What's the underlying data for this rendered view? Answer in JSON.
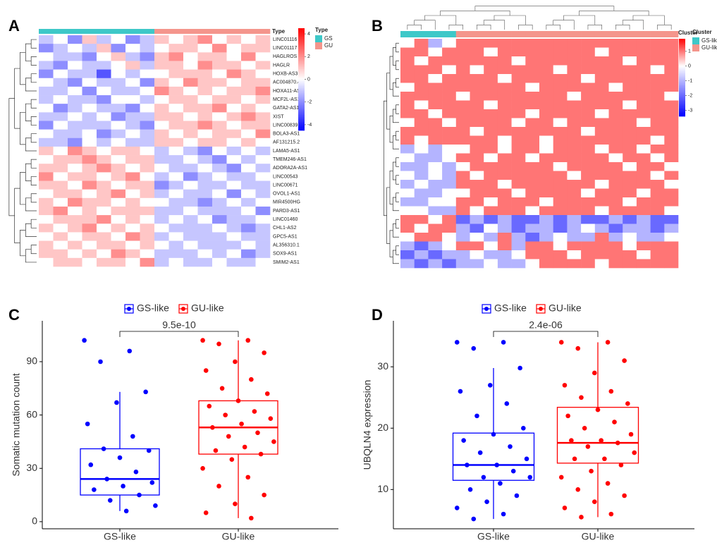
{
  "chart_data": [
    {
      "type": "heatmap",
      "label": "A",
      "rows": [
        "LINC01116",
        "LINC01117",
        "HAGLROS",
        "HAGLR",
        "HOXB-AS3",
        "AC004870.4",
        "HOXA11-AS",
        "MCF2L-AS1",
        "GATA2-AS1",
        "XIST",
        "LINC00839",
        "BOLA3-AS1",
        "AF131215.2",
        "LAMA5-AS1",
        "TMEM246-AS1",
        "ADORA2A-AS1",
        "LINC00543",
        "LINC00671",
        "OVOL1-AS1",
        "MIR4500HG",
        "PARD3-AS1",
        "LINC01460",
        "CHL1-AS2",
        "GPC5-AS1",
        "AL356310.1",
        "SOX9-AS1",
        "SMIM2-AS1"
      ],
      "column_groups": [
        "GS",
        "GS",
        "GS",
        "GS",
        "GS",
        "GS",
        "GS",
        "GS",
        "GU",
        "GU",
        "GU",
        "GU",
        "GU",
        "GU",
        "GU",
        "GU"
      ],
      "values": [
        [
          -1,
          0,
          -2,
          1,
          -1,
          0,
          -2,
          -1,
          1,
          0,
          1,
          2,
          0,
          1,
          0,
          1
        ],
        [
          -2,
          -1,
          0,
          -1,
          1,
          -2,
          0,
          -1,
          0,
          1,
          1,
          0,
          2,
          0,
          1,
          1
        ],
        [
          0,
          -1,
          -1,
          -2,
          0,
          1,
          -1,
          -2,
          1,
          2,
          0,
          1,
          1,
          0,
          2,
          0
        ],
        [
          -1,
          -2,
          0,
          -1,
          -1,
          0,
          1,
          -1,
          1,
          1,
          0,
          2,
          1,
          1,
          0,
          1
        ],
        [
          -2,
          0,
          -1,
          -1,
          -3,
          0,
          -1,
          0,
          0,
          1,
          1,
          1,
          0,
          2,
          1,
          0
        ],
        [
          0,
          -1,
          -2,
          0,
          -1,
          -1,
          0,
          -2,
          1,
          0,
          2,
          1,
          1,
          0,
          1,
          1
        ],
        [
          -1,
          -1,
          0,
          -2,
          0,
          -1,
          -1,
          0,
          2,
          1,
          0,
          1,
          0,
          1,
          1,
          2
        ],
        [
          -1,
          0,
          -1,
          -1,
          -2,
          0,
          0,
          -1,
          0,
          1,
          1,
          0,
          1,
          1,
          0,
          1
        ],
        [
          0,
          -2,
          -1,
          0,
          -1,
          -1,
          -2,
          0,
          1,
          0,
          1,
          1,
          2,
          0,
          1,
          0
        ],
        [
          -1,
          -1,
          0,
          -1,
          0,
          -2,
          -1,
          -1,
          1,
          1,
          0,
          1,
          0,
          1,
          2,
          1
        ],
        [
          -2,
          0,
          -1,
          -1,
          -1,
          0,
          -1,
          -2,
          0,
          1,
          1,
          2,
          1,
          0,
          1,
          1
        ],
        [
          0,
          -1,
          -1,
          0,
          -2,
          -1,
          0,
          -1,
          1,
          0,
          1,
          0,
          1,
          1,
          0,
          2
        ],
        [
          -1,
          -1,
          -2,
          0,
          -1,
          0,
          -1,
          -1,
          1,
          1,
          0,
          1,
          1,
          0,
          1,
          0
        ],
        [
          1,
          0,
          2,
          1,
          0,
          1,
          1,
          0,
          -1,
          0,
          -1,
          -2,
          0,
          -1,
          0,
          -1
        ],
        [
          0,
          1,
          1,
          2,
          1,
          0,
          1,
          1,
          -1,
          -1,
          0,
          -1,
          -2,
          0,
          -1,
          0
        ],
        [
          1,
          1,
          0,
          1,
          2,
          1,
          0,
          1,
          0,
          -1,
          -1,
          0,
          -1,
          -2,
          0,
          -1
        ],
        [
          2,
          0,
          1,
          1,
          0,
          1,
          2,
          0,
          -1,
          0,
          -2,
          -1,
          0,
          -1,
          -1,
          0
        ],
        [
          1,
          1,
          0,
          2,
          1,
          0,
          1,
          1,
          -2,
          -1,
          0,
          -1,
          -1,
          0,
          -1,
          -1
        ],
        [
          0,
          1,
          1,
          0,
          1,
          2,
          0,
          1,
          -1,
          0,
          -1,
          -1,
          0,
          -2,
          0,
          -1
        ],
        [
          1,
          0,
          2,
          1,
          1,
          0,
          1,
          0,
          0,
          -1,
          -1,
          -2,
          -1,
          0,
          -1,
          0
        ],
        [
          1,
          2,
          0,
          1,
          0,
          1,
          1,
          1,
          -1,
          -1,
          0,
          -1,
          -1,
          -1,
          0,
          -2
        ],
        [
          0,
          1,
          1,
          1,
          2,
          0,
          1,
          0,
          -1,
          0,
          -1,
          0,
          -2,
          -1,
          -1,
          0
        ],
        [
          1,
          0,
          1,
          2,
          0,
          1,
          0,
          1,
          0,
          -1,
          -1,
          -1,
          0,
          -1,
          -2,
          -1
        ],
        [
          0,
          1,
          0,
          1,
          1,
          0,
          2,
          1,
          -1,
          0,
          -1,
          -1,
          -1,
          0,
          -1,
          -1
        ],
        [
          1,
          0,
          1,
          0,
          1,
          1,
          0,
          1,
          0,
          -1,
          0,
          -1,
          -1,
          -1,
          0,
          -1
        ],
        [
          1,
          1,
          0,
          1,
          0,
          2,
          1,
          0,
          -1,
          -1,
          -1,
          0,
          -1,
          0,
          -2,
          -1
        ],
        [
          0,
          1,
          1,
          0,
          1,
          1,
          0,
          2,
          -1,
          0,
          -1,
          -1,
          0,
          -1,
          -1,
          0
        ]
      ],
      "clim": [
        -4.5,
        4.5
      ],
      "cticks": [
        4,
        2,
        0,
        -2,
        -4
      ],
      "colors": {
        "low": "#0000ff",
        "mid": "#ffffff",
        "high": "#ff0000"
      },
      "annotation": {
        "title": "Type",
        "labels": [
          "GS",
          "GU"
        ],
        "colors": [
          "#3ec8c8",
          "#f4958c"
        ]
      }
    },
    {
      "type": "heatmap",
      "label": "B",
      "column_groups": [
        "GS-like",
        "GS-like",
        "GS-like",
        "GS-like",
        "GU-like",
        "GU-like",
        "GU-like",
        "GU-like",
        "GU-like",
        "GU-like",
        "GU-like",
        "GU-like",
        "GU-like",
        "GU-like",
        "GU-like",
        "GU-like",
        "GU-like",
        "GU-like",
        "GU-like",
        "GU-like"
      ],
      "values": [
        [
          0,
          1,
          -1,
          0,
          1,
          1,
          1,
          1,
          1,
          1,
          1,
          1,
          1,
          1,
          1,
          1,
          1,
          1,
          1,
          1
        ],
        [
          1,
          1,
          0,
          1,
          1,
          1,
          0,
          1,
          1,
          1,
          1,
          1,
          1,
          1,
          0,
          1,
          1,
          1,
          1,
          1
        ],
        [
          1,
          0,
          1,
          1,
          1,
          1,
          1,
          1,
          0,
          1,
          1,
          1,
          1,
          1,
          1,
          1,
          0,
          1,
          1,
          1
        ],
        [
          1,
          1,
          1,
          0,
          1,
          0,
          1,
          1,
          1,
          1,
          1,
          0,
          1,
          1,
          1,
          1,
          1,
          1,
          0,
          1
        ],
        [
          1,
          1,
          0,
          1,
          1,
          1,
          1,
          0,
          1,
          1,
          1,
          1,
          1,
          0,
          1,
          1,
          1,
          1,
          1,
          1
        ],
        [
          0,
          1,
          1,
          1,
          1,
          1,
          1,
          1,
          1,
          0,
          1,
          1,
          1,
          1,
          1,
          0,
          1,
          1,
          1,
          1
        ],
        [
          1,
          1,
          1,
          1,
          0,
          1,
          1,
          1,
          1,
          1,
          1,
          1,
          0,
          1,
          1,
          1,
          1,
          1,
          1,
          0
        ],
        [
          1,
          0,
          1,
          1,
          1,
          1,
          0,
          1,
          1,
          1,
          1,
          1,
          1,
          1,
          1,
          1,
          0,
          1,
          1,
          1
        ],
        [
          1,
          1,
          0,
          1,
          1,
          1,
          1,
          1,
          1,
          0,
          1,
          1,
          1,
          1,
          0,
          1,
          1,
          1,
          1,
          1
        ],
        [
          0,
          1,
          1,
          0,
          1,
          1,
          1,
          1,
          0,
          1,
          1,
          0,
          1,
          1,
          1,
          1,
          1,
          0,
          1,
          1
        ],
        [
          1,
          1,
          1,
          1,
          1,
          0,
          1,
          1,
          1,
          1,
          1,
          1,
          1,
          0,
          1,
          1,
          1,
          1,
          1,
          1
        ],
        [
          1,
          0,
          1,
          1,
          1,
          1,
          1,
          0,
          1,
          1,
          0,
          1,
          1,
          1,
          1,
          1,
          1,
          1,
          0,
          1
        ],
        [
          -1,
          0,
          -1,
          0,
          0,
          1,
          1,
          0,
          1,
          1,
          0,
          1,
          1,
          1,
          0,
          1,
          1,
          0,
          1,
          1
        ],
        [
          0,
          -1,
          -1,
          0,
          1,
          1,
          0,
          1,
          1,
          0,
          1,
          1,
          1,
          1,
          1,
          0,
          1,
          1,
          0,
          1
        ],
        [
          -1,
          -1,
          0,
          -1,
          0,
          1,
          1,
          1,
          1,
          1,
          1,
          0,
          1,
          1,
          1,
          1,
          0,
          1,
          1,
          0
        ],
        [
          0,
          -1,
          0,
          -1,
          1,
          0,
          1,
          1,
          1,
          1,
          1,
          1,
          0,
          1,
          1,
          1,
          1,
          1,
          0,
          1
        ],
        [
          -1,
          0,
          -1,
          -1,
          1,
          1,
          1,
          0,
          1,
          1,
          1,
          1,
          1,
          1,
          0,
          1,
          1,
          1,
          1,
          0
        ],
        [
          0,
          -1,
          -1,
          0,
          0,
          1,
          1,
          1,
          0,
          1,
          1,
          1,
          1,
          0,
          1,
          1,
          1,
          0,
          1,
          1
        ],
        [
          -1,
          -1,
          0,
          0,
          1,
          1,
          0,
          1,
          1,
          1,
          0,
          1,
          1,
          1,
          1,
          1,
          0,
          1,
          1,
          1
        ],
        [
          0,
          0,
          -1,
          -1,
          1,
          0,
          1,
          1,
          1,
          0,
          1,
          1,
          1,
          1,
          0,
          1,
          1,
          1,
          1,
          0
        ],
        [
          1,
          1,
          0,
          1,
          -2,
          -1,
          -2,
          -1,
          -2,
          -2,
          -1,
          -2,
          -1,
          -2,
          -2,
          -1,
          -2,
          -1,
          -2,
          -2
        ],
        [
          1,
          0,
          1,
          1,
          -1,
          -2,
          0,
          -1,
          -2,
          -1,
          -1,
          -2,
          -1,
          0,
          -1,
          -2,
          -1,
          -1,
          -2,
          -1
        ],
        [
          0,
          1,
          1,
          0,
          -1,
          0,
          -1,
          1,
          -1,
          -2,
          -1,
          0,
          -1,
          -1,
          1,
          -1,
          0,
          -1,
          -1,
          0
        ],
        [
          -1,
          -2,
          -1,
          0,
          1,
          1,
          0,
          1,
          -1,
          1,
          1,
          0,
          1,
          1,
          1,
          1,
          0,
          1,
          1,
          1
        ],
        [
          -2,
          -1,
          -2,
          -1,
          -1,
          0,
          -1,
          -1,
          0,
          1,
          1,
          1,
          0,
          1,
          1,
          1,
          1,
          0,
          1,
          1
        ],
        [
          -1,
          -2,
          -1,
          -2,
          -1,
          -1,
          0,
          -1,
          -1,
          0,
          1,
          1,
          1,
          1,
          0,
          1,
          1,
          1,
          1,
          1
        ]
      ],
      "clim": [
        -3.4,
        1.85
      ],
      "cticks": [
        1,
        0,
        -1,
        -2,
        -3
      ],
      "colors": {
        "low": "#0000ff",
        "mid": "#ffffff",
        "high": "#ff0000"
      },
      "annotation": {
        "title": "Cluster",
        "labels": [
          "GS-like",
          "GU-like"
        ],
        "colors": [
          "#3ec8c8",
          "#f4958c"
        ]
      }
    },
    {
      "type": "box",
      "label": "C",
      "ylabel": "Somatic mutation count",
      "categories": [
        "GS-like",
        "GU-like"
      ],
      "ylim": [
        -4,
        113
      ],
      "yticks": [
        0,
        30,
        60,
        90
      ],
      "pvalue": "9.5e-10",
      "series": [
        {
          "name": "GS-like",
          "color": "#0000ff",
          "q1": 15,
          "median": 24,
          "q3": 41,
          "whisker_low": 6,
          "whisker_high": 73,
          "points": [
            102,
            96,
            90,
            73,
            67,
            55,
            48,
            41,
            40,
            36,
            32,
            28,
            24,
            22,
            20,
            18,
            15,
            12,
            9,
            6
          ]
        },
        {
          "name": "GU-like",
          "color": "#ff0000",
          "q1": 38,
          "median": 53,
          "q3": 68,
          "whisker_low": 2,
          "whisker_high": 102,
          "points": [
            102,
            102,
            100,
            95,
            90,
            85,
            80,
            75,
            72,
            68,
            65,
            62,
            60,
            58,
            55,
            53,
            50,
            48,
            45,
            42,
            40,
            38,
            35,
            30,
            25,
            20,
            15,
            10,
            5,
            2
          ]
        }
      ]
    },
    {
      "type": "box",
      "label": "D",
      "ylabel": "UBQLN4 expression",
      "categories": [
        "GS-like",
        "GU-like"
      ],
      "ylim": [
        3.6,
        37.5
      ],
      "yticks": [
        10,
        20,
        30
      ],
      "pvalue": "2.4e-06",
      "series": [
        {
          "name": "GS-like",
          "color": "#0000ff",
          "q1": 11.5,
          "median": 14,
          "q3": 19.2,
          "whisker_low": 5.2,
          "whisker_high": 29.8,
          "points": [
            34,
            34,
            33,
            29.8,
            27,
            26,
            24,
            22,
            20,
            19,
            18,
            17,
            16,
            15,
            14,
            14,
            13,
            12,
            12,
            11,
            10,
            9,
            8,
            7,
            6,
            5.2
          ]
        },
        {
          "name": "GU-like",
          "color": "#ff0000",
          "q1": 14.3,
          "median": 17.6,
          "q3": 23.4,
          "whisker_low": 5.5,
          "whisker_high": 34,
          "points": [
            34,
            34,
            33,
            31,
            29,
            27,
            26,
            25,
            24,
            23,
            22,
            21,
            20,
            19,
            18,
            18,
            17.6,
            17,
            16,
            15,
            15,
            14,
            13,
            12,
            11,
            10,
            9,
            8,
            7,
            6,
            5.5
          ]
        }
      ]
    }
  ]
}
